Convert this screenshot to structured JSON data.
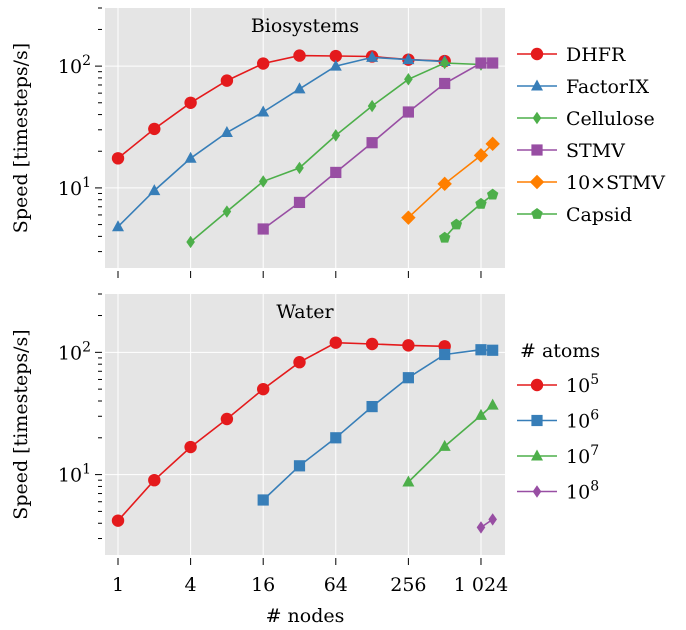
{
  "chart_data": [
    {
      "type": "line",
      "title": "Biosystems",
      "xlabel": "",
      "ylabel": "Speed [timesteps/s]",
      "xscale": "log2",
      "yscale": "log10",
      "xlim": [
        0.78,
        1620
      ],
      "ylim": [
        2.2,
        300
      ],
      "yticks": [
        {
          "value": 10,
          "label": "10",
          "exp": "1"
        },
        {
          "value": 100,
          "label": "10",
          "exp": "2"
        }
      ],
      "grid": true,
      "legend": {
        "placement": "right",
        "title": ""
      },
      "series": [
        {
          "name": "DHFR",
          "color": "#e41a1c",
          "marker": "circle",
          "x": [
            1,
            2,
            4,
            8,
            16,
            32,
            64,
            128,
            256,
            512
          ],
          "y": [
            17.5,
            30.5,
            50,
            76,
            105,
            122,
            121,
            120,
            113,
            110
          ]
        },
        {
          "name": "FactorIX",
          "color": "#377eb8",
          "marker": "triangle",
          "x": [
            1,
            2,
            4,
            8,
            16,
            32,
            64,
            128,
            256,
            512
          ],
          "y": [
            4.8,
            9.5,
            17.5,
            28.5,
            42,
            65,
            100,
            118,
            113,
            109
          ]
        },
        {
          "name": "Cellulose",
          "color": "#4daf4a",
          "marker": "diamond",
          "x": [
            4,
            8,
            16,
            32,
            64,
            128,
            256,
            512,
            1024
          ],
          "y": [
            3.6,
            6.4,
            11.3,
            14.6,
            27,
            47,
            78,
            106,
            103
          ]
        },
        {
          "name": "STMV",
          "color": "#984ea3",
          "marker": "square",
          "x": [
            16,
            32,
            64,
            128,
            256,
            512,
            1024,
            1280
          ],
          "y": [
            4.6,
            7.6,
            13.4,
            23.5,
            42,
            72,
            106,
            106
          ]
        },
        {
          "name": "10×STMV",
          "color": "#ff7f00",
          "marker": "bigdiamond",
          "x": [
            256,
            512,
            1024,
            1280
          ],
          "y": [
            5.7,
            10.8,
            18.5,
            23
          ]
        },
        {
          "name": "Capsid",
          "color": "#4daf4a",
          "marker": "pentagon",
          "x": [
            512,
            640,
            1024,
            1280
          ],
          "y": [
            3.9,
            5.0,
            7.4,
            8.8
          ]
        }
      ]
    },
    {
      "type": "line",
      "title": "Water",
      "xlabel": "# nodes",
      "ylabel": "Speed [timesteps/s]",
      "xscale": "log2",
      "yscale": "log10",
      "xlim": [
        0.78,
        1620
      ],
      "ylim": [
        2.2,
        300
      ],
      "xticks": [
        {
          "value": 1,
          "label": "1"
        },
        {
          "value": 4,
          "label": "4"
        },
        {
          "value": 16,
          "label": "16"
        },
        {
          "value": 64,
          "label": "64"
        },
        {
          "value": 256,
          "label": "256"
        },
        {
          "value": 1024,
          "label": "1 024"
        }
      ],
      "yticks": [
        {
          "value": 10,
          "label": "10",
          "exp": "1"
        },
        {
          "value": 100,
          "label": "10",
          "exp": "2"
        }
      ],
      "grid": true,
      "legend": {
        "placement": "right",
        "title": "# atoms"
      },
      "series": [
        {
          "name": "10",
          "name_exp": "5",
          "color": "#e41a1c",
          "marker": "circle",
          "x": [
            1,
            2,
            4,
            8,
            16,
            32,
            64,
            128,
            256,
            512
          ],
          "y": [
            4.2,
            9.0,
            16.8,
            28.5,
            50,
            83,
            120,
            117,
            114,
            112
          ]
        },
        {
          "name": "10",
          "name_exp": "6",
          "color": "#377eb8",
          "marker": "square",
          "x": [
            16,
            32,
            64,
            128,
            256,
            512,
            1024,
            1280
          ],
          "y": [
            6.2,
            11.8,
            20,
            36,
            62,
            96,
            105,
            104
          ]
        },
        {
          "name": "10",
          "name_exp": "7",
          "color": "#4daf4a",
          "marker": "triangle",
          "x": [
            256,
            512,
            1024,
            1280
          ],
          "y": [
            8.7,
            17,
            30.5,
            37
          ]
        },
        {
          "name": "10",
          "name_exp": "8",
          "color": "#984ea3",
          "marker": "diamond",
          "x": [
            1024,
            1280
          ],
          "y": [
            3.7,
            4.3
          ]
        }
      ]
    }
  ]
}
